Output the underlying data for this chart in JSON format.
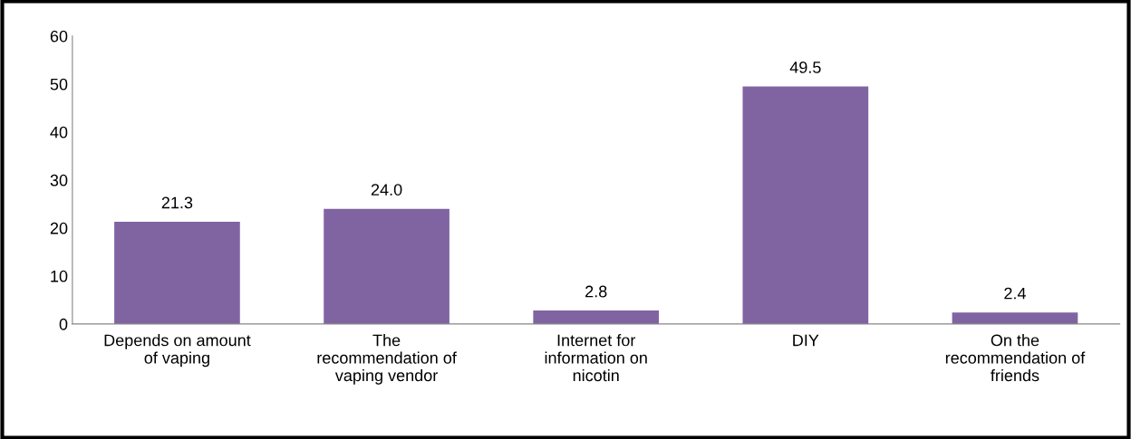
{
  "chart_data": {
    "type": "bar",
    "categories": [
      "Depends on amount\nof vaping",
      "The\nrecommendation of\nvaping vendor",
      "Internet for\ninformation on\nnicotin",
      "DIY",
      "On the\nrecommendation of\nfriends"
    ],
    "values": [
      21.3,
      24.0,
      2.8,
      49.5,
      2.4
    ],
    "value_labels": [
      "21.3",
      "24.0",
      "2.8",
      "49.5",
      "2.4"
    ],
    "color": "#8064a2",
    "ylim": [
      0,
      60
    ],
    "yticks": [
      0,
      10,
      20,
      30,
      40,
      50,
      60
    ],
    "grid": false,
    "legend": false
  }
}
